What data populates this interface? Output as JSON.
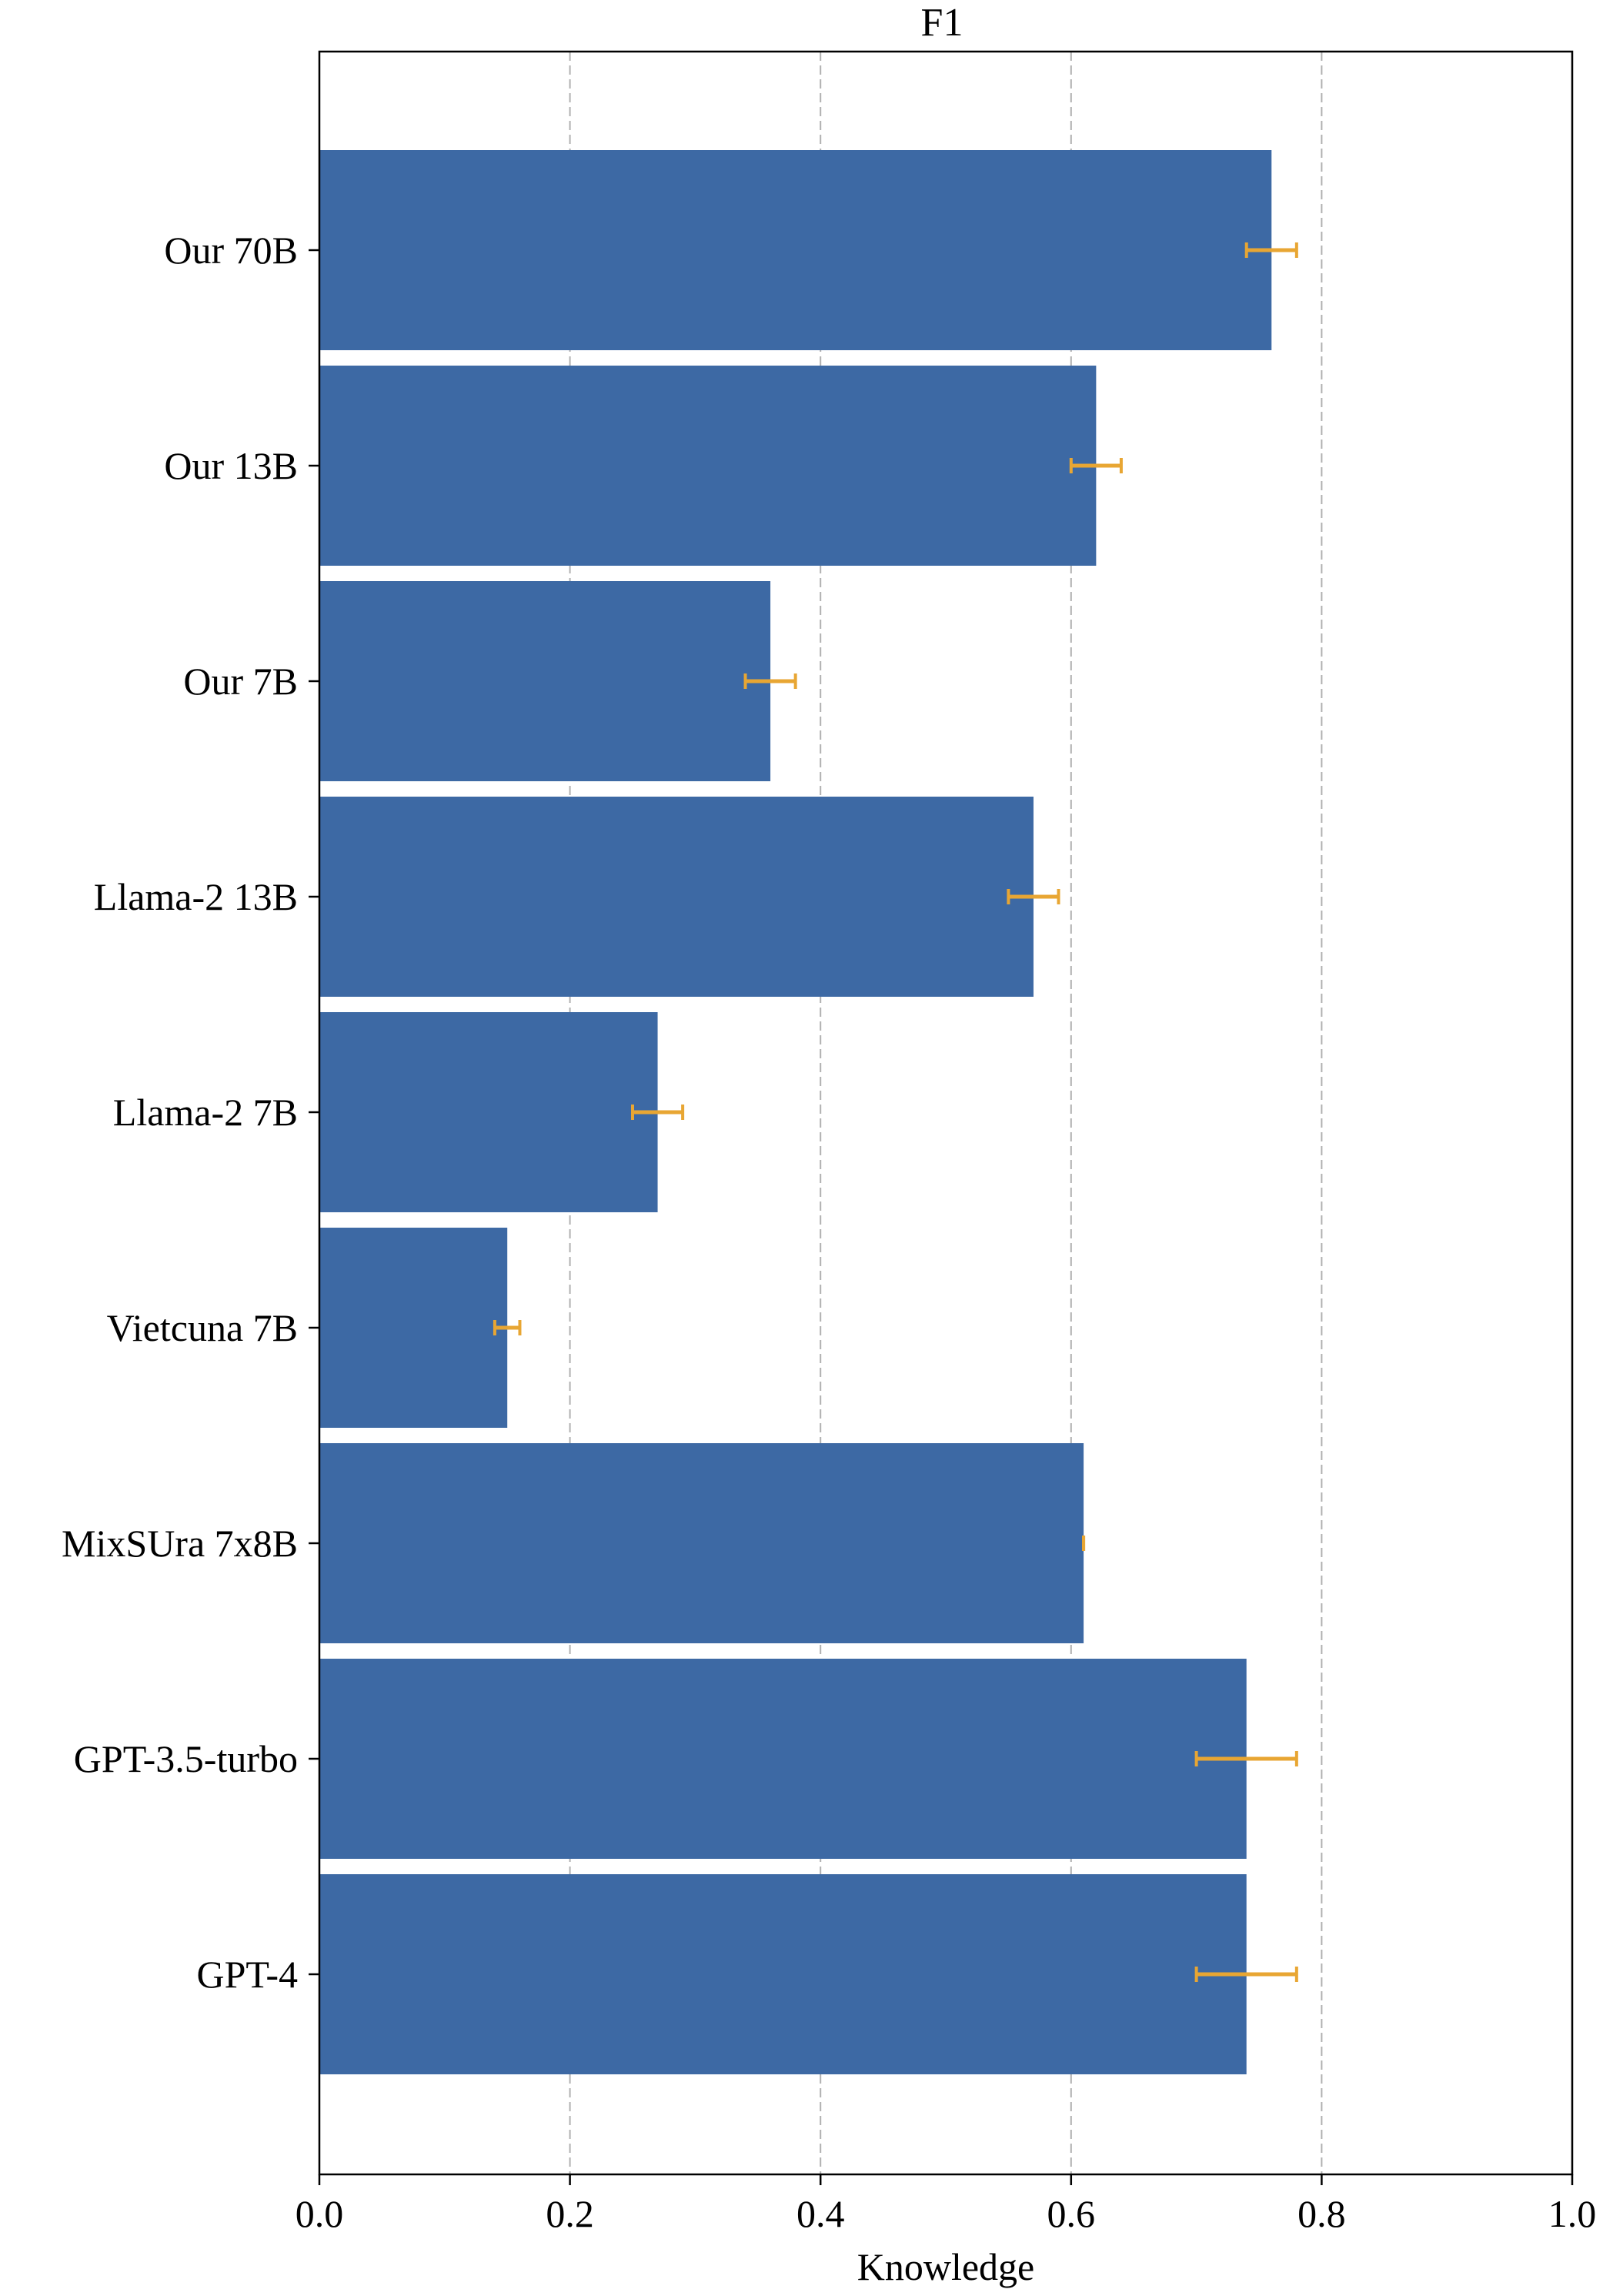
{
  "chart_data": {
    "type": "bar",
    "orientation": "horizontal",
    "title": "F1",
    "xlabel": "Knowledge",
    "ylabel": "",
    "xlim": [
      0,
      1.0
    ],
    "xticks": [
      "0.0",
      "0.2",
      "0.4",
      "0.6",
      "0.8",
      "1.0"
    ],
    "grid": "vertical dashed",
    "categories": [
      "Our 70B",
      "Our 13B",
      "Our 7B",
      "Llama-2 13B",
      "Llama-2 7B",
      "Vietcuna 7B",
      "MixSUra 7x8B",
      "GPT-3.5-turbo",
      "GPT-4"
    ],
    "values": [
      0.76,
      0.62,
      0.36,
      0.57,
      0.27,
      0.15,
      0.61,
      0.74,
      0.74
    ],
    "error_low": [
      0.74,
      0.6,
      0.34,
      0.55,
      0.25,
      0.14,
      0.61,
      0.7,
      0.7
    ],
    "error_high": [
      0.78,
      0.64,
      0.38,
      0.59,
      0.29,
      0.16,
      0.61,
      0.78,
      0.78
    ],
    "bar_color": "#3d69a4",
    "error_color": "#e8a633"
  }
}
